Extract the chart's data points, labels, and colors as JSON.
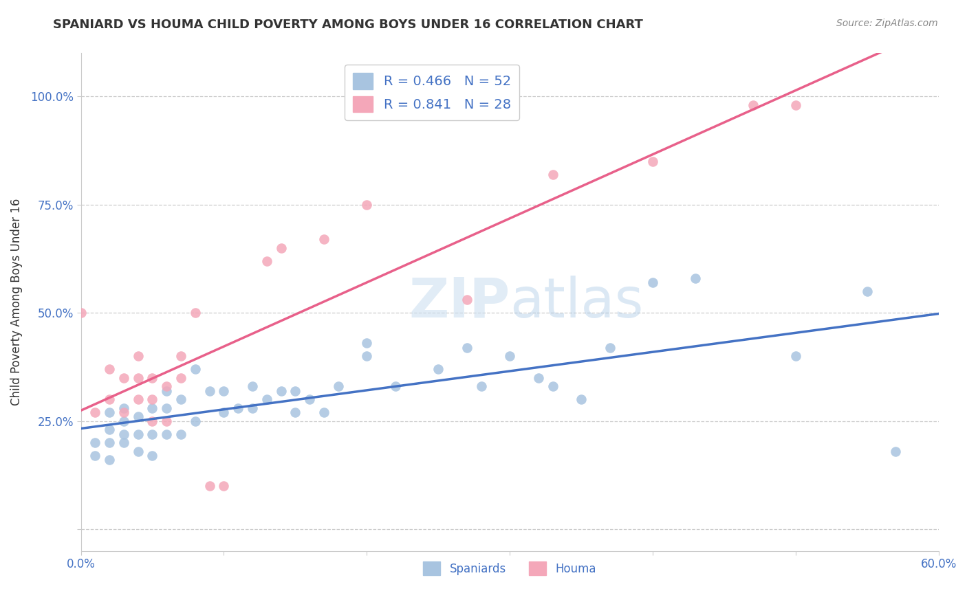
{
  "title": "SPANIARD VS HOUMA CHILD POVERTY AMONG BOYS UNDER 16 CORRELATION CHART",
  "source_text": "Source: ZipAtlas.com",
  "ylabel": "Child Poverty Among Boys Under 16",
  "xlim": [
    0.0,
    0.6
  ],
  "ylim": [
    -0.05,
    1.1
  ],
  "xtick_vals": [
    0.0,
    0.1,
    0.2,
    0.3,
    0.4,
    0.5,
    0.6
  ],
  "xtick_labels": [
    "0.0%",
    "",
    "",
    "",
    "",
    "",
    "60.0%"
  ],
  "ytick_vals": [
    0.0,
    0.25,
    0.5,
    0.75,
    1.0
  ],
  "ytick_labels": [
    "",
    "25.0%",
    "50.0%",
    "75.0%",
    "100.0%"
  ],
  "spaniard_color": "#a8c4e0",
  "houma_color": "#f4a7b9",
  "spaniard_line_color": "#4472c4",
  "houma_line_color": "#e8608a",
  "legend_label_spaniard": "R = 0.466   N = 52",
  "legend_label_houma": "R = 0.841   N = 28",
  "legend_labels_bottom": [
    "Spaniards",
    "Houma"
  ],
  "title_color": "#333333",
  "grid_color": "#cccccc",
  "legend_text_color": "#4472c4",
  "background_color": "#ffffff",
  "spaniard_x": [
    0.01,
    0.01,
    0.02,
    0.02,
    0.02,
    0.02,
    0.03,
    0.03,
    0.03,
    0.03,
    0.04,
    0.04,
    0.04,
    0.05,
    0.05,
    0.05,
    0.06,
    0.06,
    0.06,
    0.07,
    0.07,
    0.08,
    0.08,
    0.09,
    0.1,
    0.1,
    0.11,
    0.12,
    0.12,
    0.13,
    0.14,
    0.15,
    0.15,
    0.16,
    0.17,
    0.18,
    0.2,
    0.2,
    0.22,
    0.25,
    0.27,
    0.28,
    0.3,
    0.32,
    0.33,
    0.35,
    0.37,
    0.4,
    0.43,
    0.5,
    0.55,
    0.57
  ],
  "spaniard_y": [
    0.17,
    0.2,
    0.16,
    0.2,
    0.23,
    0.27,
    0.2,
    0.22,
    0.25,
    0.28,
    0.18,
    0.22,
    0.26,
    0.17,
    0.22,
    0.28,
    0.22,
    0.28,
    0.32,
    0.22,
    0.3,
    0.25,
    0.37,
    0.32,
    0.27,
    0.32,
    0.28,
    0.28,
    0.33,
    0.3,
    0.32,
    0.27,
    0.32,
    0.3,
    0.27,
    0.33,
    0.4,
    0.43,
    0.33,
    0.37,
    0.42,
    0.33,
    0.4,
    0.35,
    0.33,
    0.3,
    0.42,
    0.57,
    0.58,
    0.4,
    0.55,
    0.18
  ],
  "houma_x": [
    0.0,
    0.01,
    0.02,
    0.02,
    0.03,
    0.03,
    0.04,
    0.04,
    0.04,
    0.05,
    0.05,
    0.05,
    0.06,
    0.06,
    0.07,
    0.07,
    0.08,
    0.09,
    0.1,
    0.13,
    0.14,
    0.17,
    0.2,
    0.27,
    0.33,
    0.4,
    0.47,
    0.5
  ],
  "houma_y": [
    0.5,
    0.27,
    0.3,
    0.37,
    0.27,
    0.35,
    0.3,
    0.35,
    0.4,
    0.25,
    0.3,
    0.35,
    0.25,
    0.33,
    0.35,
    0.4,
    0.5,
    0.1,
    0.1,
    0.62,
    0.65,
    0.67,
    0.75,
    0.53,
    0.82,
    0.85,
    0.98,
    0.98
  ]
}
